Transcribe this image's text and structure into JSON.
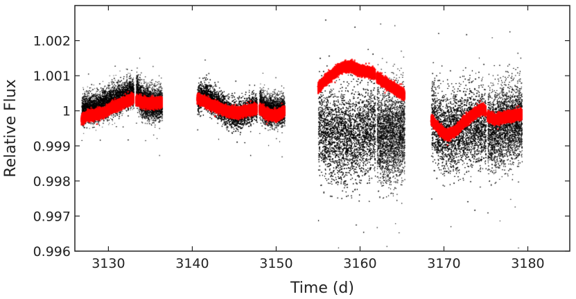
{
  "chart_data": {
    "type": "scatter",
    "title": "",
    "xlabel": "Time (d)",
    "ylabel": "Relative Flux",
    "xlim": [
      3126,
      3185
    ],
    "ylim": [
      0.996,
      1.003
    ],
    "x_ticks": [
      3130,
      3140,
      3150,
      3160,
      3170,
      3180
    ],
    "x_tick_labels": [
      "3130",
      "3140",
      "3150",
      "3160",
      "3170",
      "3180"
    ],
    "y_ticks": [
      0.996,
      0.997,
      0.998,
      0.999,
      1.0,
      1.001,
      1.002
    ],
    "y_tick_labels": [
      "0.996",
      "0.997",
      "0.998",
      "0.999",
      "1",
      "1.001",
      "1.002"
    ],
    "grid": false,
    "colors": {
      "raw": "#000000",
      "binned": "#ff0000"
    },
    "series": [
      {
        "segments": [
          {
            "t": [
              3126.8,
              3127.5,
              3128.5,
              3129.5,
              3130.5,
              3131.5,
              3132.5,
              3133.0
            ],
            "f": [
              1.0,
              1.0001,
              1.0001,
              1.0002,
              1.0003,
              1.0004,
              1.0005,
              1.0005
            ],
            "scatter": 0.0004
          },
          {
            "t": [
              3133.3,
              3134.0,
              3135.0,
              3136.4
            ],
            "f": [
              1.0006,
              1.0003,
              1.0002,
              1.0002
            ],
            "scatter": 0.00045
          },
          {
            "t": [
              3140.6,
              3141.5,
              3142.5,
              3143.5,
              3144.5,
              3145.5,
              3146.5,
              3147.7
            ],
            "f": [
              1.0003,
              1.0005,
              1.0003,
              1.0001,
              0.9999,
              0.9999,
              1.0,
              1.0001
            ],
            "scatter": 0.0004
          },
          {
            "t": [
              3148.0,
              3149.0,
              3150.0,
              3151.0
            ],
            "f": [
              1.0002,
              1.0,
              1.0,
              1.0
            ],
            "scatter": 0.0004
          },
          {
            "t": [
              3155.0,
              3156.5,
              3158.0,
              3159.5,
              3161.8
            ],
            "f": [
              0.9996,
              0.9994,
              0.9992,
              0.9993,
              0.9995
            ],
            "scatter": 0.0013
          },
          {
            "t": [
              3162.0,
              3163.5,
              3165.3
            ],
            "f": [
              0.9994,
              0.9993,
              0.9994
            ],
            "scatter": 0.0013
          },
          {
            "t": [
              3168.5,
              3170.0,
              3171.5,
              3173.0,
              3175.0
            ],
            "f": [
              0.9998,
              0.9994,
              0.9994,
              0.9996,
              0.9995
            ],
            "scatter": 0.0011
          },
          {
            "t": [
              3175.2,
              3177.0,
              3179.3
            ],
            "f": [
              0.9994,
              0.9996,
              0.9997
            ],
            "scatter": 0.0011
          }
        ]
      },
      {
        "segments": [
          {
            "t": [
              3126.8,
              3127.5,
              3128.5,
              3129.5,
              3130.5,
              3131.5,
              3132.5,
              3133.0
            ],
            "f": [
              0.99975,
              0.99985,
              0.9999,
              0.99995,
              1.0001,
              1.0002,
              1.0003,
              1.00035
            ]
          },
          {
            "t": [
              3133.3,
              3134.0,
              3135.0,
              3136.4
            ],
            "f": [
              1.0003,
              1.00025,
              1.0002,
              1.00025
            ]
          },
          {
            "t": [
              3140.6,
              3141.5,
              3142.5,
              3143.5,
              3144.5,
              3145.5,
              3146.5,
              3147.7
            ],
            "f": [
              1.00035,
              1.00025,
              1.00015,
              1.00005,
              0.99995,
              0.99995,
              1.0,
              1.00005
            ]
          },
          {
            "t": [
              3148.0,
              3149.0,
              3150.0,
              3151.0
            ],
            "f": [
              1.00005,
              0.9999,
              0.99985,
              1.0
            ]
          },
          {
            "t": [
              3155.0,
              3156.0,
              3157.0,
              3158.0,
              3159.0,
              3160.0,
              3161.0,
              3161.8
            ],
            "f": [
              1.00065,
              1.0009,
              1.0011,
              1.00125,
              1.00125,
              1.00115,
              1.0011,
              1.00105
            ]
          },
          {
            "t": [
              3162.0,
              3163.0,
              3164.0,
              3165.3
            ],
            "f": [
              1.00095,
              1.0008,
              1.00065,
              1.00045
            ]
          },
          {
            "t": [
              3168.5,
              3169.5,
              3170.5,
              3171.5,
              3172.5,
              3173.5,
              3174.5,
              3175.0
            ],
            "f": [
              0.99975,
              0.99945,
              0.9993,
              0.99945,
              0.9997,
              0.9999,
              1.00005,
              1.0
            ]
          },
          {
            "t": [
              3175.2,
              3176.0,
              3177.0,
              3178.0,
              3179.3
            ],
            "f": [
              0.99985,
              0.99975,
              0.9998,
              0.99985,
              0.9999
            ]
          }
        ]
      }
    ]
  }
}
